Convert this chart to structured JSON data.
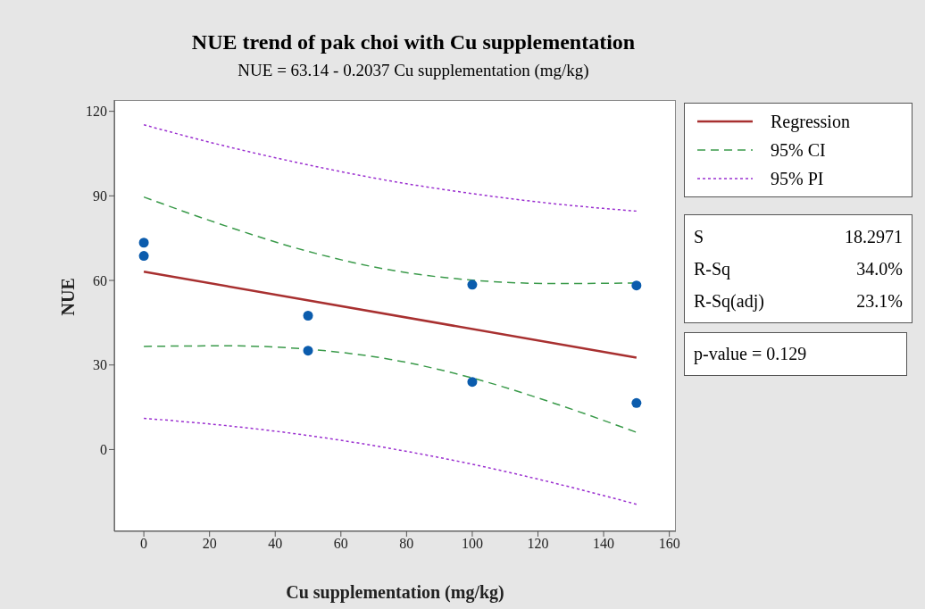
{
  "chart_data": {
    "type": "scatter",
    "title": "NUE trend of pak choi  with Cu supplementation",
    "subtitle": "NUE = 63.14 - 0.2037 Cu supplementation (mg/kg)",
    "xlabel": "Cu supplementation (mg/kg)",
    "ylabel": "NUE",
    "x": [
      0,
      0,
      50,
      50,
      100,
      100,
      150,
      150
    ],
    "values": [
      73.4,
      68.7,
      47.5,
      35.1,
      58.5,
      24,
      58.2,
      16.5
    ],
    "color": "#0b5cad",
    "marker": "circle",
    "series": [
      {
        "name": "Regression",
        "type": "line",
        "color": "#a83030",
        "line_style": "solid",
        "marker": "none",
        "x": [
          0,
          150
        ],
        "values": [
          63.1,
          32.6
        ]
      },
      {
        "name": "95% CI",
        "type": "line",
        "color": "#3a9a4a",
        "line_style": "dashed",
        "marker": "none",
        "x": [
          0,
          25,
          50,
          75,
          100,
          125,
          150
        ],
        "values": [
          89.6,
          79.3,
          70.3,
          63.7,
          60.1,
          58.9,
          59.1
        ]
      },
      {
        "type": "line",
        "color": "#3a9a4a",
        "line_style": "dashed",
        "marker": "none",
        "x": [
          0,
          25,
          50,
          75,
          100,
          125,
          150
        ],
        "values": [
          36.6,
          36.8,
          35.6,
          32.0,
          25.4,
          16.4,
          6.1
        ]
      },
      {
        "name": "95% PI",
        "type": "line",
        "color": "#9b30d0",
        "line_style": "dotted",
        "marker": "none",
        "x": [
          0,
          25,
          50,
          75,
          100,
          125,
          150
        ],
        "values": [
          115.2,
          107.6,
          101.0,
          95.3,
          90.8,
          87.2,
          84.6
        ]
      },
      {
        "type": "line",
        "color": "#9b30d0",
        "line_style": "dotted",
        "marker": "none",
        "x": [
          0,
          25,
          50,
          75,
          100,
          125,
          150
        ],
        "values": [
          11.1,
          8.5,
          5.0,
          0.4,
          -5.2,
          -11.9,
          -19.4
        ]
      }
    ],
    "xlim": [
      -9,
      162
    ],
    "xticks": [
      0,
      20,
      40,
      60,
      80,
      100,
      120,
      140,
      160
    ],
    "ylim": [
      -29,
      124
    ],
    "yticks": [
      0,
      30,
      60,
      90,
      120
    ],
    "grid": false,
    "legend": "right",
    "annotations": [
      "S",
      "18.2971",
      "R-Sq",
      "34.0%",
      "R-Sq(adj)",
      "23.1%",
      "p-value = 0.129"
    ]
  }
}
